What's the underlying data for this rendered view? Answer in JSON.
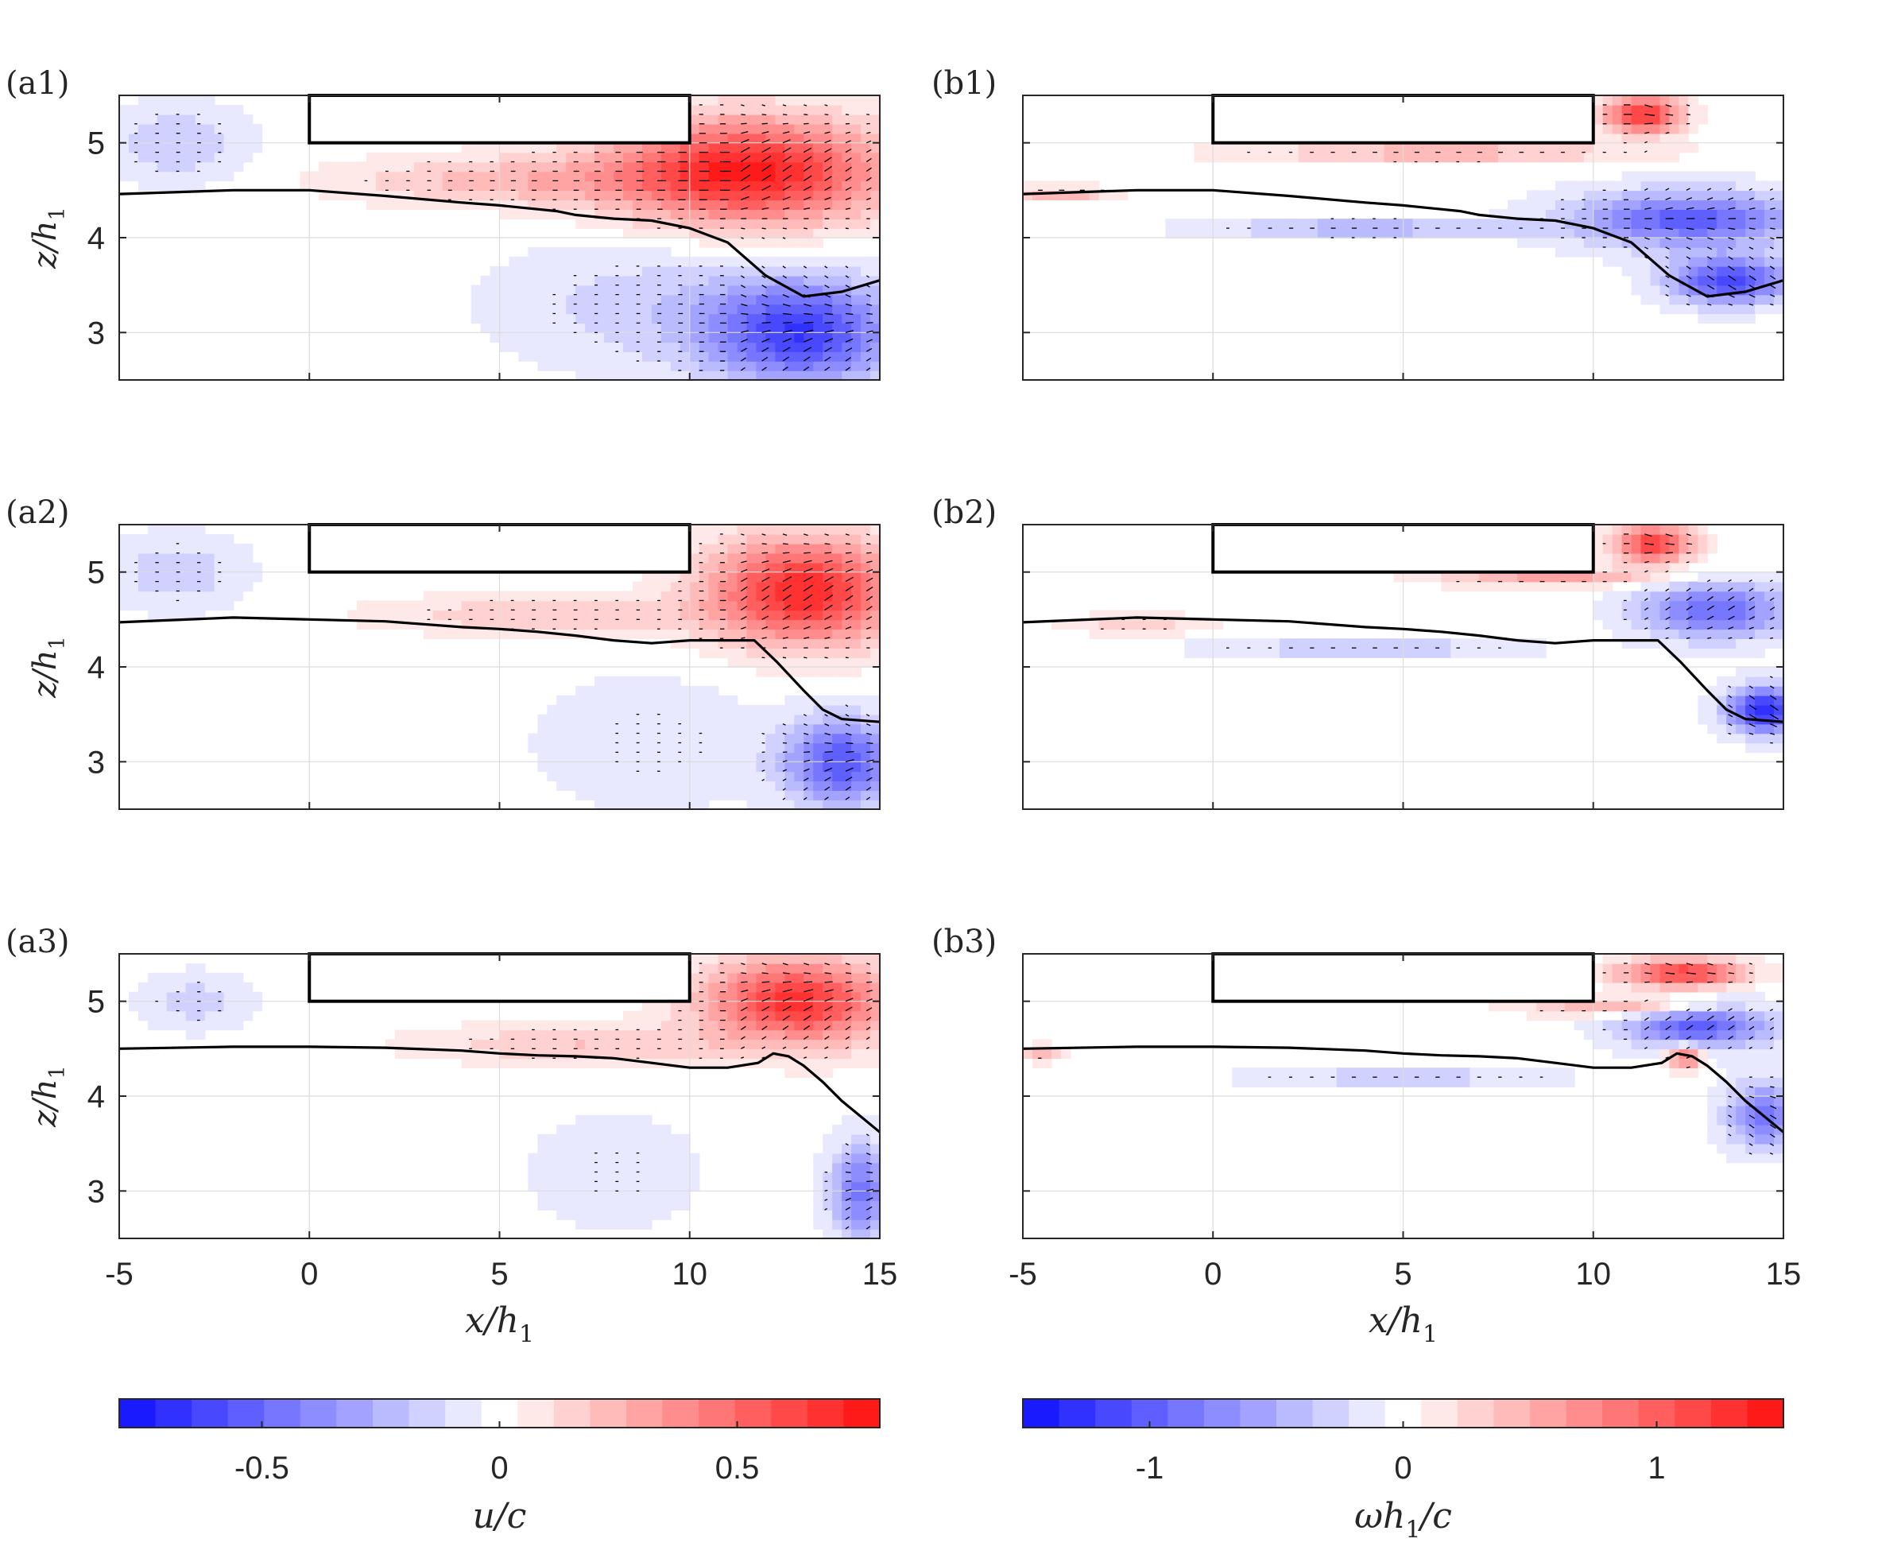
{
  "chart_data": {
    "type": "heatmap",
    "xlim": [
      -5,
      15
    ],
    "ylim": [
      2.5,
      5.5
    ],
    "x_ticks": [
      "-5",
      "0",
      "5",
      "10",
      "15"
    ],
    "y_ticks": [
      "3",
      "4",
      "5"
    ],
    "x_tick_values": [
      -5,
      0,
      5,
      10,
      15
    ],
    "y_tick_values": [
      3,
      4,
      5
    ],
    "xlabel": "x/h",
    "xlabel_sub": "1",
    "ylabel": "z/h",
    "ylabel_sub": "1",
    "obstacle": {
      "x_start": 0,
      "x_end": 10,
      "z_bottom": 5.0,
      "z_top": 5.5
    },
    "panels": [
      {
        "label": "(a1)",
        "field": "u/c",
        "interface": [
          [
            -5,
            4.46
          ],
          [
            -2,
            4.5
          ],
          [
            0,
            4.5
          ],
          [
            2,
            4.44
          ],
          [
            4,
            4.37
          ],
          [
            5,
            4.34
          ],
          [
            5.5,
            4.32
          ],
          [
            6,
            4.3
          ],
          [
            6.5,
            4.28
          ],
          [
            7,
            4.24
          ],
          [
            8,
            4.2
          ],
          [
            9,
            4.18
          ],
          [
            10,
            4.1
          ],
          [
            11,
            3.95
          ],
          [
            12,
            3.6
          ],
          [
            13,
            3.38
          ],
          [
            14,
            3.43
          ],
          [
            15,
            3.55
          ]
        ]
      },
      {
        "label": "(b1)",
        "field": "ωh1/c",
        "interface": [
          [
            -5,
            4.46
          ],
          [
            -2,
            4.5
          ],
          [
            0,
            4.5
          ],
          [
            2,
            4.44
          ],
          [
            4,
            4.37
          ],
          [
            5,
            4.34
          ],
          [
            5.5,
            4.32
          ],
          [
            6,
            4.3
          ],
          [
            6.5,
            4.28
          ],
          [
            7,
            4.24
          ],
          [
            8,
            4.2
          ],
          [
            9,
            4.18
          ],
          [
            10,
            4.1
          ],
          [
            11,
            3.95
          ],
          [
            12,
            3.6
          ],
          [
            13,
            3.38
          ],
          [
            14,
            3.43
          ],
          [
            15,
            3.55
          ]
        ]
      },
      {
        "label": "(a2)",
        "field": "u/c",
        "interface": [
          [
            -5,
            4.47
          ],
          [
            -2,
            4.52
          ],
          [
            0,
            4.5
          ],
          [
            2,
            4.48
          ],
          [
            4,
            4.42
          ],
          [
            5,
            4.4
          ],
          [
            6,
            4.37
          ],
          [
            7,
            4.33
          ],
          [
            8,
            4.28
          ],
          [
            9,
            4.25
          ],
          [
            10,
            4.28
          ],
          [
            11,
            4.28
          ],
          [
            11.7,
            4.28
          ],
          [
            12.3,
            4.05
          ],
          [
            13,
            3.75
          ],
          [
            13.5,
            3.55
          ],
          [
            14,
            3.45
          ],
          [
            15,
            3.42
          ]
        ]
      },
      {
        "label": "(b2)",
        "field": "ωh1/c",
        "interface": [
          [
            -5,
            4.47
          ],
          [
            -2,
            4.52
          ],
          [
            0,
            4.5
          ],
          [
            2,
            4.48
          ],
          [
            4,
            4.42
          ],
          [
            5,
            4.4
          ],
          [
            6,
            4.37
          ],
          [
            7,
            4.33
          ],
          [
            8,
            4.28
          ],
          [
            9,
            4.25
          ],
          [
            10,
            4.28
          ],
          [
            11,
            4.28
          ],
          [
            11.7,
            4.28
          ],
          [
            12.3,
            4.05
          ],
          [
            13,
            3.75
          ],
          [
            13.5,
            3.55
          ],
          [
            14,
            3.45
          ],
          [
            15,
            3.42
          ]
        ]
      },
      {
        "label": "(a3)",
        "field": "u/c",
        "interface": [
          [
            -5,
            4.5
          ],
          [
            -2,
            4.52
          ],
          [
            0,
            4.52
          ],
          [
            2,
            4.51
          ],
          [
            4,
            4.48
          ],
          [
            5,
            4.45
          ],
          [
            6,
            4.43
          ],
          [
            7,
            4.42
          ],
          [
            8,
            4.4
          ],
          [
            9,
            4.35
          ],
          [
            10,
            4.3
          ],
          [
            11,
            4.3
          ],
          [
            11.8,
            4.35
          ],
          [
            12.2,
            4.45
          ],
          [
            12.6,
            4.42
          ],
          [
            13,
            4.32
          ],
          [
            13.5,
            4.15
          ],
          [
            14,
            3.95
          ],
          [
            15,
            3.62
          ]
        ]
      },
      {
        "label": "(b3)",
        "field": "ωh1/c",
        "interface": [
          [
            -5,
            4.5
          ],
          [
            -2,
            4.52
          ],
          [
            0,
            4.52
          ],
          [
            2,
            4.51
          ],
          [
            4,
            4.48
          ],
          [
            5,
            4.45
          ],
          [
            6,
            4.43
          ],
          [
            7,
            4.42
          ],
          [
            8,
            4.4
          ],
          [
            9,
            4.35
          ],
          [
            10,
            4.3
          ],
          [
            11,
            4.3
          ],
          [
            11.8,
            4.35
          ],
          [
            12.2,
            4.45
          ],
          [
            12.6,
            4.42
          ],
          [
            13,
            4.32
          ],
          [
            13.5,
            4.15
          ],
          [
            14,
            3.95
          ],
          [
            15,
            3.62
          ]
        ]
      }
    ],
    "colorbars": [
      {
        "label": "u/c",
        "range": [
          -0.8,
          0.8
        ],
        "ticks": [
          "-0.5",
          "0",
          "0.5"
        ],
        "tick_values": [
          -0.5,
          0,
          0.5
        ]
      },
      {
        "label": "ωh",
        "label_tail": "/c",
        "label_sub": "1",
        "range": [
          -1.5,
          1.5
        ],
        "ticks": [
          "-1",
          "0",
          "1"
        ],
        "tick_values": [
          -1,
          0,
          1
        ]
      }
    ]
  },
  "colors": {
    "positive": "#ff1a1a",
    "negative": "#1a1aff",
    "neutral": "#ffffff",
    "axis": "#262626",
    "grid": "#dcdcdc",
    "interface": "#000000"
  }
}
